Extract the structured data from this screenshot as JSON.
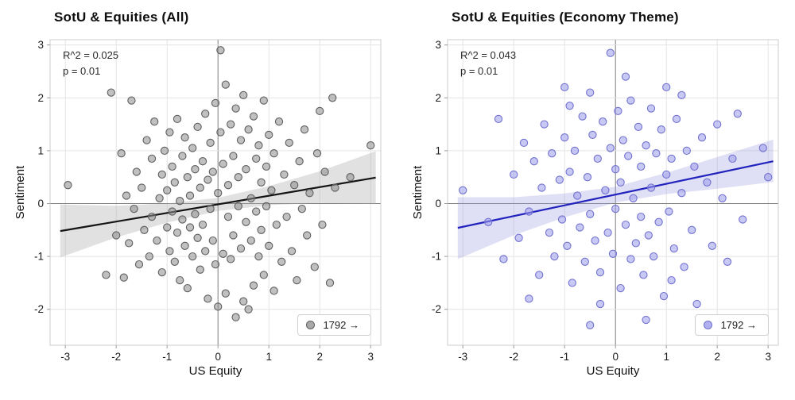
{
  "figure": {
    "background": "#ffffff"
  },
  "chart_data": [
    {
      "type": "scatter",
      "title": "SotU & Equities (All)",
      "xlabel": "US Equity",
      "ylabel": "Sentiment",
      "annotation": {
        "r2": "R^2 = 0.025",
        "p": "p = 0.01"
      },
      "legend_label": "1792 →",
      "xlim": [
        -3.3,
        3.2
      ],
      "ylim": [
        -2.68,
        3.1
      ],
      "xticks": [
        -3,
        -2,
        -1,
        0,
        1,
        2,
        3
      ],
      "yticks": [
        -2,
        -1,
        0,
        1,
        2,
        3
      ],
      "grid": true,
      "colors": {
        "point_fill": "#8c8c8c",
        "point_stroke": "#5f5f5f",
        "point_opacity": 0.55,
        "line": "#141414",
        "band": "#a8a8a8",
        "band_opacity": 0.35,
        "grid": "#e4e4e4",
        "zero_line": "#7d7d7d",
        "spine": "#cccccc",
        "tick_text": "#1a1a1a"
      },
      "regression": {
        "x0": -3.1,
        "y0": -0.52,
        "x1": 3.1,
        "y1": 0.49
      },
      "band": [
        [
          -3.1,
          -1.02,
          -0.02
        ],
        [
          -2.0,
          -0.64,
          -0.04
        ],
        [
          -1.0,
          -0.36,
          0.0
        ],
        [
          0.0,
          -0.14,
          0.11
        ],
        [
          1.0,
          -0.03,
          0.33
        ],
        [
          2.0,
          0.01,
          0.61
        ],
        [
          3.1,
          -0.01,
          0.99
        ]
      ],
      "points": [
        [
          -2.95,
          0.35
        ],
        [
          -2.2,
          -1.35
        ],
        [
          -2.1,
          2.1
        ],
        [
          -2.0,
          -0.6
        ],
        [
          -1.9,
          0.95
        ],
        [
          -1.85,
          -1.4
        ],
        [
          -1.8,
          0.15
        ],
        [
          -1.75,
          -0.75
        ],
        [
          -1.7,
          1.95
        ],
        [
          -1.65,
          -0.1
        ],
        [
          -1.6,
          0.6
        ],
        [
          -1.55,
          -1.15
        ],
        [
          -1.5,
          0.3
        ],
        [
          -1.45,
          -0.5
        ],
        [
          -1.4,
          1.2
        ],
        [
          -1.35,
          -1.0
        ],
        [
          -1.3,
          0.85
        ],
        [
          -1.3,
          -0.25
        ],
        [
          -1.25,
          1.55
        ],
        [
          -1.2,
          -0.7
        ],
        [
          -1.15,
          0.1
        ],
        [
          -1.1,
          -1.3
        ],
        [
          -1.1,
          0.55
        ],
        [
          -1.05,
          1.0
        ],
        [
          -1.0,
          -0.45
        ],
        [
          -1.0,
          0.25
        ],
        [
          -0.95,
          -0.9
        ],
        [
          -0.95,
          1.35
        ],
        [
          -0.9,
          -0.15
        ],
        [
          -0.9,
          0.7
        ],
        [
          -0.85,
          -1.1
        ],
        [
          -0.85,
          0.4
        ],
        [
          -0.8,
          1.6
        ],
        [
          -0.8,
          -0.55
        ],
        [
          -0.75,
          0.05
        ],
        [
          -0.75,
          -1.45
        ],
        [
          -0.7,
          0.9
        ],
        [
          -0.7,
          -0.3
        ],
        [
          -0.65,
          1.25
        ],
        [
          -0.65,
          -0.8
        ],
        [
          -0.6,
          0.5
        ],
        [
          -0.6,
          -1.6
        ],
        [
          -0.55,
          0.15
        ],
        [
          -0.55,
          -0.45
        ],
        [
          -0.5,
          1.05
        ],
        [
          -0.5,
          -1.0
        ],
        [
          -0.45,
          0.65
        ],
        [
          -0.45,
          -0.2
        ],
        [
          -0.4,
          1.45
        ],
        [
          -0.4,
          -0.65
        ],
        [
          -0.35,
          0.3
        ],
        [
          -0.35,
          -1.25
        ],
        [
          -0.3,
          0.8
        ],
        [
          -0.3,
          -0.4
        ],
        [
          -0.25,
          1.7
        ],
        [
          -0.25,
          -0.9
        ],
        [
          -0.2,
          0.45
        ],
        [
          -0.2,
          -1.8
        ],
        [
          -0.15,
          1.15
        ],
        [
          -0.15,
          -0.1
        ],
        [
          -0.1,
          0.6
        ],
        [
          -0.1,
          -0.7
        ],
        [
          -0.05,
          1.9
        ],
        [
          -0.05,
          -1.15
        ],
        [
          0.0,
          0.2
        ],
        [
          0.0,
          -1.95
        ],
        [
          0.05,
          2.9
        ],
        [
          0.05,
          1.35
        ],
        [
          0.1,
          -0.95
        ],
        [
          0.1,
          0.75
        ],
        [
          0.15,
          2.25
        ],
        [
          0.15,
          -1.7
        ],
        [
          0.2,
          0.35
        ],
        [
          0.2,
          -0.25
        ],
        [
          0.25,
          1.5
        ],
        [
          0.25,
          -1.05
        ],
        [
          0.3,
          0.9
        ],
        [
          0.3,
          -0.6
        ],
        [
          0.35,
          1.8
        ],
        [
          0.35,
          -2.15
        ],
        [
          0.4,
          0.5
        ],
        [
          0.4,
          -0.05
        ],
        [
          0.45,
          1.2
        ],
        [
          0.45,
          -0.85
        ],
        [
          0.5,
          2.05
        ],
        [
          0.5,
          -1.85
        ],
        [
          0.55,
          0.65
        ],
        [
          0.55,
          -0.35
        ],
        [
          0.6,
          1.4
        ],
        [
          0.6,
          -2.0
        ],
        [
          0.65,
          0.1
        ],
        [
          0.65,
          -0.7
        ],
        [
          0.7,
          1.65
        ],
        [
          0.7,
          -1.55
        ],
        [
          0.75,
          0.85
        ],
        [
          0.75,
          -0.15
        ],
        [
          0.8,
          1.1
        ],
        [
          0.8,
          -1.0
        ],
        [
          0.85,
          0.4
        ],
        [
          0.85,
          -0.5
        ],
        [
          0.9,
          1.95
        ],
        [
          0.9,
          -1.35
        ],
        [
          0.95,
          0.7
        ],
        [
          0.95,
          -0.05
        ],
        [
          1.0,
          1.3
        ],
        [
          1.0,
          -0.8
        ],
        [
          1.05,
          0.25
        ],
        [
          1.1,
          -1.65
        ],
        [
          1.1,
          0.95
        ],
        [
          1.15,
          -0.4
        ],
        [
          1.2,
          1.55
        ],
        [
          1.25,
          -1.1
        ],
        [
          1.3,
          0.55
        ],
        [
          1.35,
          -0.25
        ],
        [
          1.4,
          1.15
        ],
        [
          1.45,
          -0.9
        ],
        [
          1.5,
          0.35
        ],
        [
          1.55,
          -1.45
        ],
        [
          1.6,
          0.8
        ],
        [
          1.65,
          -0.1
        ],
        [
          1.7,
          1.4
        ],
        [
          1.75,
          -0.6
        ],
        [
          1.8,
          0.2
        ],
        [
          1.9,
          -1.2
        ],
        [
          1.95,
          0.95
        ],
        [
          2.0,
          1.75
        ],
        [
          2.05,
          -0.4
        ],
        [
          2.1,
          0.6
        ],
        [
          2.2,
          -1.5
        ],
        [
          2.25,
          2.0
        ],
        [
          2.3,
          0.3
        ],
        [
          2.6,
          0.5
        ],
        [
          3.0,
          1.1
        ]
      ]
    },
    {
      "type": "scatter",
      "title": "SotU & Equities (Economy Theme)",
      "xlabel": "US Equity",
      "ylabel": "Sentiment",
      "annotation": {
        "r2": "R^2 = 0.043",
        "p": "p = 0.01"
      },
      "legend_label": "1792 →",
      "xlim": [
        -3.3,
        3.2
      ],
      "ylim": [
        -2.68,
        3.1
      ],
      "xticks": [
        -3,
        -2,
        -1,
        0,
        1,
        2,
        3
      ],
      "yticks": [
        -2,
        -1,
        0,
        1,
        2,
        3
      ],
      "grid": true,
      "colors": {
        "point_fill": "#9a9aec",
        "point_stroke": "#7272cf",
        "point_opacity": 0.55,
        "line": "#2222bd",
        "band": "#9d9de0",
        "band_opacity": 0.32,
        "grid": "#e4e4e4",
        "zero_line": "#7d7d7d",
        "spine": "#cccccc",
        "tick_text": "#1a1a1a"
      },
      "regression": {
        "x0": -3.1,
        "y0": -0.46,
        "x1": 3.1,
        "y1": 0.8
      },
      "band": [
        [
          -3.1,
          -1.05,
          0.12
        ],
        [
          -2.0,
          -0.6,
          0.12
        ],
        [
          -1.0,
          -0.26,
          0.19
        ],
        [
          0.0,
          0.02,
          0.32
        ],
        [
          1.0,
          0.18,
          0.58
        ],
        [
          2.0,
          0.28,
          0.88
        ],
        [
          3.1,
          0.41,
          1.21
        ]
      ],
      "points": [
        [
          -3.0,
          0.25
        ],
        [
          -2.5,
          -0.35
        ],
        [
          -2.3,
          1.6
        ],
        [
          -2.2,
          -1.05
        ],
        [
          -2.0,
          0.55
        ],
        [
          -1.9,
          -0.65
        ],
        [
          -1.8,
          1.15
        ],
        [
          -1.7,
          -0.15
        ],
        [
          -1.7,
          -1.8
        ],
        [
          -1.6,
          0.8
        ],
        [
          -1.5,
          -1.35
        ],
        [
          -1.45,
          0.3
        ],
        [
          -1.4,
          1.5
        ],
        [
          -1.3,
          -0.55
        ],
        [
          -1.25,
          0.95
        ],
        [
          -1.2,
          -1.0
        ],
        [
          -1.1,
          0.45
        ],
        [
          -1.05,
          -0.3
        ],
        [
          -1.0,
          1.25
        ],
        [
          -1.0,
          2.2
        ],
        [
          -0.95,
          -0.8
        ],
        [
          -0.9,
          0.6
        ],
        [
          -0.9,
          1.85
        ],
        [
          -0.85,
          -1.5
        ],
        [
          -0.8,
          1.0
        ],
        [
          -0.75,
          0.15
        ],
        [
          -0.7,
          -0.45
        ],
        [
          -0.65,
          1.65
        ],
        [
          -0.6,
          -1.1
        ],
        [
          -0.55,
          0.5
        ],
        [
          -0.5,
          -0.2
        ],
        [
          -0.5,
          2.1
        ],
        [
          -0.5,
          -2.3
        ],
        [
          -0.45,
          1.3
        ],
        [
          -0.4,
          -0.7
        ],
        [
          -0.35,
          0.85
        ],
        [
          -0.3,
          -1.3
        ],
        [
          -0.3,
          -1.9
        ],
        [
          -0.25,
          1.55
        ],
        [
          -0.2,
          0.25
        ],
        [
          -0.15,
          -0.55
        ],
        [
          -0.1,
          2.85
        ],
        [
          -0.1,
          1.05
        ],
        [
          -0.05,
          -0.95
        ],
        [
          0.0,
          0.65
        ],
        [
          0.0,
          -0.1
        ],
        [
          0.05,
          1.75
        ],
        [
          0.1,
          -1.6
        ],
        [
          0.1,
          0.4
        ],
        [
          0.15,
          1.2
        ],
        [
          0.2,
          -0.4
        ],
        [
          0.2,
          2.4
        ],
        [
          0.25,
          0.9
        ],
        [
          0.3,
          -1.05
        ],
        [
          0.3,
          1.95
        ],
        [
          0.35,
          0.1
        ],
        [
          0.4,
          -0.75
        ],
        [
          0.45,
          1.45
        ],
        [
          0.5,
          -0.25
        ],
        [
          0.5,
          0.7
        ],
        [
          0.55,
          -1.35
        ],
        [
          0.6,
          1.1
        ],
        [
          0.6,
          -2.2
        ],
        [
          0.65,
          -0.6
        ],
        [
          0.7,
          1.8
        ],
        [
          0.7,
          0.3
        ],
        [
          0.75,
          -1.0
        ],
        [
          0.8,
          0.95
        ],
        [
          0.85,
          -0.35
        ],
        [
          0.9,
          1.4
        ],
        [
          0.95,
          -1.75
        ],
        [
          1.0,
          0.55
        ],
        [
          1.0,
          2.2
        ],
        [
          1.05,
          -0.15
        ],
        [
          1.1,
          0.85
        ],
        [
          1.1,
          -1.45
        ],
        [
          1.15,
          -0.85
        ],
        [
          1.2,
          1.6
        ],
        [
          1.3,
          0.2
        ],
        [
          1.3,
          2.05
        ],
        [
          1.35,
          -1.2
        ],
        [
          1.4,
          1.0
        ],
        [
          1.5,
          -0.5
        ],
        [
          1.55,
          0.7
        ],
        [
          1.6,
          -1.9
        ],
        [
          1.7,
          1.25
        ],
        [
          1.8,
          0.4
        ],
        [
          1.9,
          -0.8
        ],
        [
          2.0,
          1.5
        ],
        [
          2.1,
          0.1
        ],
        [
          2.2,
          -1.1
        ],
        [
          2.3,
          0.85
        ],
        [
          2.4,
          1.7
        ],
        [
          2.5,
          -0.3
        ],
        [
          2.9,
          1.05
        ],
        [
          3.0,
          0.5
        ]
      ]
    }
  ]
}
